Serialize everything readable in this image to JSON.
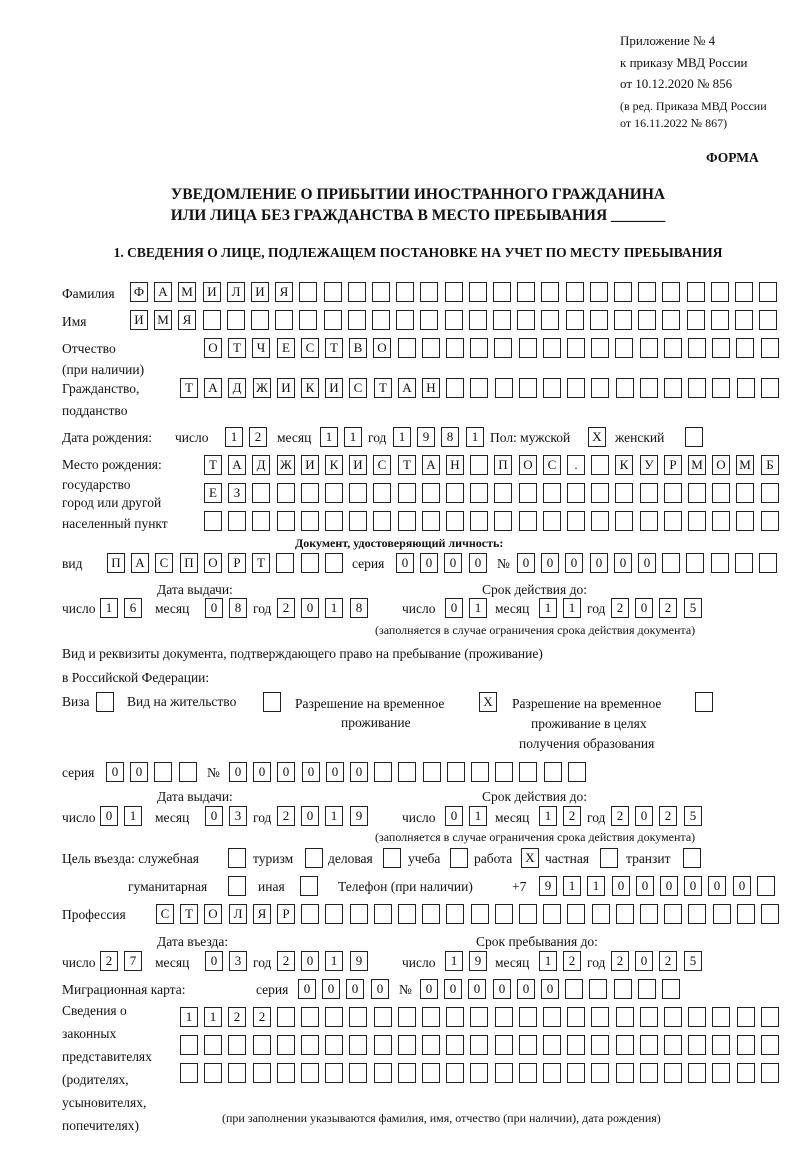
{
  "header": {
    "appendix": "Приложение № 4",
    "order": "к приказу МВД России",
    "order_date": "от 10.12.2020 № 856",
    "revision1": "(в ред. Приказа МВД России",
    "revision2": "от 16.11.2022 № 867)",
    "form_label": "ФОРМА",
    "title1": "УВЕДОМЛЕНИЕ О ПРИБЫТИИ ИНОСТРАННОГО ГРАЖДАНИНА",
    "title2": "ИЛИ ЛИЦА БЕЗ ГРАЖДАНСТВА В МЕСТО ПРЕБЫВАНИЯ _______",
    "section1": "1. СВЕДЕНИЯ О ЛИЦЕ, ПОДЛЕЖАЩЕМ ПОСТАНОВКЕ НА УЧЕТ ПО МЕСТУ ПРЕБЫВАНИЯ"
  },
  "labels": {
    "surname": "Фамилия",
    "name": "Имя",
    "patronymic1": "Отчество",
    "patronymic2": "(при наличии)",
    "citizenship1": "Гражданство,",
    "citizenship2": "подданство",
    "birth_date": "Дата рождения:",
    "day": "число",
    "month": "месяц",
    "year": "год",
    "sex_male": "Пол: мужской",
    "sex_female": "женский",
    "birthplace1": "Место рождения:",
    "birthplace2": "государство",
    "birthplace3": "город или другой",
    "birthplace4": "населенный пункт",
    "id_doc": "Документ, удостоверяющий личность:",
    "kind": "вид",
    "series": "серия",
    "number": "№",
    "issue_date": "Дата выдачи:",
    "valid_until": "Срок действия до:",
    "validity_note": "(заполняется в случае ограничения срока действия документа)",
    "residence_doc1": "Вид и реквизиты документа, подтверждающего право на пребывание (проживание)",
    "residence_doc2": "в Российской Федерации:",
    "visa": "Виза",
    "residence_permit": "Вид на жительство",
    "temp_permit1": "Разрешение на временное",
    "temp_permit2": "проживание",
    "temp_edu1": "Разрешение на временное",
    "temp_edu2": "проживание в целях",
    "temp_edu3": "получения образования",
    "purpose": "Цель въезда: служебная",
    "tourism": "туризм",
    "business": "деловая",
    "study": "учеба",
    "work": "работа",
    "private": "частная",
    "transit": "транзит",
    "humanitarian": "гуманитарная",
    "other": "иная",
    "phone": "Телефон (при наличии)",
    "phone_prefix": "+7",
    "profession": "Профессия",
    "entry_date": "Дата въезда:",
    "stay_until": "Срок пребывания до:",
    "migration_card": "Миграционная карта:",
    "reps1": "Сведения о",
    "reps2": "законных",
    "reps3": "представителях",
    "reps4": "(родителях,",
    "reps5": "усыновителях,",
    "reps6": "попечителях)",
    "reps_note": "(при заполнении указываются фамилия, имя, отчество (при наличии), дата рождения)"
  },
  "fields": {
    "surname": [
      "Ф",
      "А",
      "М",
      "И",
      "Л",
      "И",
      "Я"
    ],
    "name": [
      "И",
      "М",
      "Я"
    ],
    "patronymic": [
      "О",
      "Т",
      "Ч",
      "Е",
      "С",
      "Т",
      "В",
      "О"
    ],
    "citizenship": [
      "Т",
      "А",
      "Д",
      "Ж",
      "И",
      "К",
      "И",
      "С",
      "Т",
      "А",
      "Н"
    ],
    "birth_day": [
      "1",
      "2"
    ],
    "birth_month": [
      "1",
      "1"
    ],
    "birth_year": [
      "1",
      "9",
      "8",
      "1"
    ],
    "sex_male": "X",
    "sex_female": "",
    "birthplace_row1": [
      "Т",
      "А",
      "Д",
      "Ж",
      "И",
      "К",
      "И",
      "С",
      "Т",
      "А",
      "Н",
      "",
      "П",
      "О",
      "С",
      ".",
      "",
      "К",
      "У",
      "Р",
      "М",
      "О",
      "М",
      "Б"
    ],
    "birthplace_row2": [
      "Е",
      "З"
    ],
    "birthplace_row3": [],
    "id_kind": [
      "П",
      "А",
      "С",
      "П",
      "О",
      "Р",
      "Т"
    ],
    "id_series": [
      "0",
      "0",
      "0",
      "0"
    ],
    "id_number": [
      "0",
      "0",
      "0",
      "0",
      "0",
      "0"
    ],
    "id_issue_day": [
      "1",
      "6"
    ],
    "id_issue_month": [
      "0",
      "8"
    ],
    "id_issue_year": [
      "2",
      "0",
      "1",
      "8"
    ],
    "id_valid_day": [
      "0",
      "1"
    ],
    "id_valid_month": [
      "1",
      "1"
    ],
    "id_valid_year": [
      "2",
      "0",
      "2",
      "5"
    ],
    "visa": "",
    "residence_permit": "",
    "temp_permit": "X",
    "temp_edu": "",
    "rd_series": [
      "0",
      "0"
    ],
    "rd_number": [
      "0",
      "0",
      "0",
      "0",
      "0",
      "0"
    ],
    "rd_issue_day": [
      "0",
      "1"
    ],
    "rd_issue_month": [
      "0",
      "3"
    ],
    "rd_issue_year": [
      "2",
      "0",
      "1",
      "9"
    ],
    "rd_valid_day": [
      "0",
      "1"
    ],
    "rd_valid_month": [
      "1",
      "2"
    ],
    "rd_valid_year": [
      "2",
      "0",
      "2",
      "5"
    ],
    "purpose_official": "",
    "purpose_tourism": "",
    "purpose_business": "",
    "purpose_study": "",
    "purpose_work": "X",
    "purpose_private": "",
    "purpose_transit": "",
    "purpose_humanitarian": "",
    "purpose_other": "",
    "phone": [
      "9",
      "1",
      "1",
      "0",
      "0",
      "0",
      "0",
      "0",
      "0"
    ],
    "profession": [
      "С",
      "Т",
      "О",
      "Л",
      "Я",
      "Р"
    ],
    "entry_day": [
      "2",
      "7"
    ],
    "entry_month": [
      "0",
      "3"
    ],
    "entry_year": [
      "2",
      "0",
      "1",
      "9"
    ],
    "stay_day": [
      "1",
      "9"
    ],
    "stay_month": [
      "1",
      "2"
    ],
    "stay_year": [
      "2",
      "0",
      "2",
      "5"
    ],
    "mc_series": [
      "0",
      "0",
      "0",
      "0"
    ],
    "mc_number": [
      "0",
      "0",
      "0",
      "0",
      "0",
      "0"
    ],
    "reps_row1": [
      "1",
      "1",
      "2",
      "2"
    ],
    "reps_row2": [],
    "reps_row3": []
  }
}
